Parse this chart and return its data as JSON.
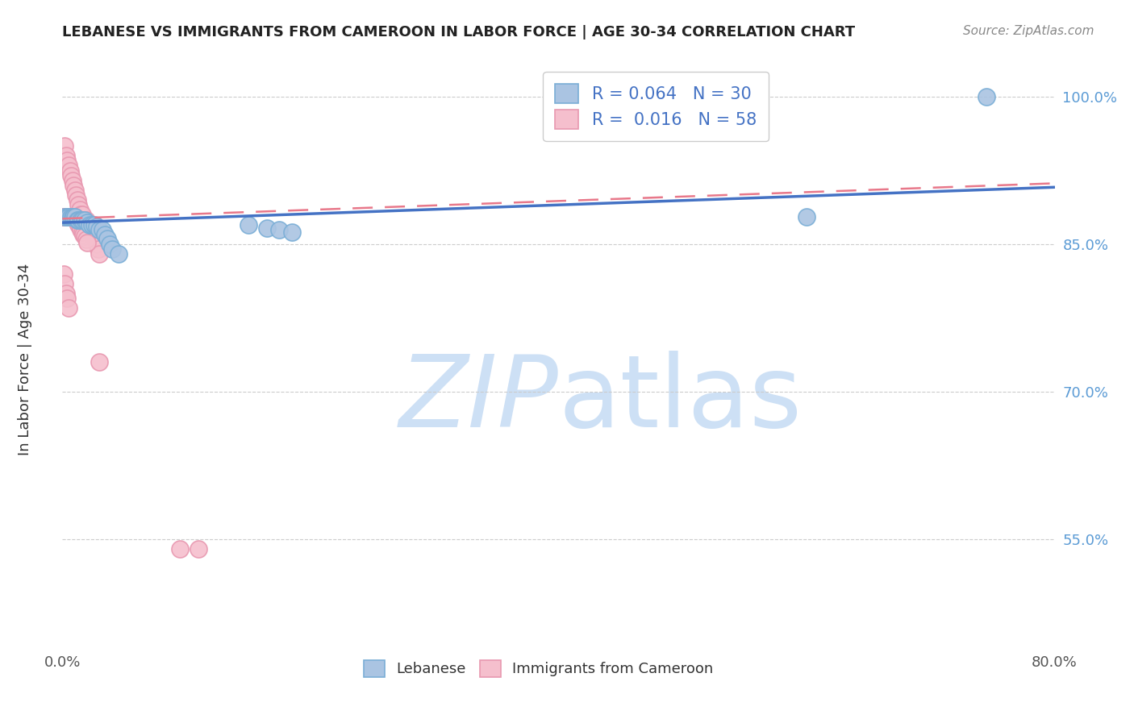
{
  "title": "LEBANESE VS IMMIGRANTS FROM CAMEROON IN LABOR FORCE | AGE 30-34 CORRELATION CHART",
  "source": "Source: ZipAtlas.com",
  "ylabel": "In Labor Force | Age 30-34",
  "xlim": [
    0.0,
    0.8
  ],
  "ylim": [
    0.44,
    1.04
  ],
  "xticks": [
    0.0,
    0.1,
    0.2,
    0.3,
    0.4,
    0.5,
    0.6,
    0.7,
    0.8
  ],
  "xticklabels": [
    "0.0%",
    "",
    "",
    "",
    "",
    "",
    "",
    "",
    "80.0%"
  ],
  "ytick_positions": [
    0.55,
    0.7,
    0.85,
    1.0
  ],
  "yticklabels": [
    "55.0%",
    "70.0%",
    "85.0%",
    "100.0%"
  ],
  "blue_R": 0.064,
  "blue_N": 30,
  "pink_R": 0.016,
  "pink_N": 58,
  "blue_color": "#aac4e2",
  "pink_color": "#f5bfcd",
  "blue_edge": "#7aaed6",
  "pink_edge": "#e898b0",
  "blue_line_color": "#4472c4",
  "pink_line_color": "#e8788a",
  "watermark_color": "#cde0f5",
  "grid_color": "#cccccc",
  "blue_scatter_x": [
    0.002,
    0.004,
    0.005,
    0.007,
    0.008,
    0.009,
    0.01,
    0.012,
    0.013,
    0.015,
    0.016,
    0.018,
    0.02,
    0.022,
    0.024,
    0.026,
    0.028,
    0.03,
    0.032,
    0.034,
    0.036,
    0.038,
    0.04,
    0.045,
    0.15,
    0.165,
    0.175,
    0.185,
    0.6,
    0.745
  ],
  "blue_scatter_y": [
    0.878,
    0.878,
    0.878,
    0.878,
    0.878,
    0.878,
    0.878,
    0.875,
    0.875,
    0.875,
    0.875,
    0.875,
    0.872,
    0.87,
    0.87,
    0.87,
    0.868,
    0.865,
    0.865,
    0.86,
    0.856,
    0.85,
    0.845,
    0.84,
    0.87,
    0.866,
    0.865,
    0.862,
    0.878,
    1.0
  ],
  "pink_scatter_x": [
    0.001,
    0.002,
    0.003,
    0.004,
    0.005,
    0.006,
    0.007,
    0.008,
    0.009,
    0.01,
    0.011,
    0.012,
    0.013,
    0.014,
    0.015,
    0.016,
    0.017,
    0.018,
    0.019,
    0.02,
    0.021,
    0.022,
    0.023,
    0.024,
    0.025,
    0.026,
    0.027,
    0.028,
    0.029,
    0.03,
    0.001,
    0.002,
    0.003,
    0.004,
    0.005,
    0.006,
    0.007,
    0.008,
    0.009,
    0.01,
    0.011,
    0.012,
    0.013,
    0.014,
    0.015,
    0.016,
    0.017,
    0.018,
    0.019,
    0.02,
    0.001,
    0.002,
    0.003,
    0.004,
    0.005,
    0.03,
    0.095,
    0.11
  ],
  "pink_scatter_y": [
    0.878,
    0.95,
    0.94,
    0.935,
    0.93,
    0.925,
    0.92,
    0.915,
    0.91,
    0.905,
    0.9,
    0.895,
    0.89,
    0.885,
    0.88,
    0.88,
    0.875,
    0.875,
    0.875,
    0.87,
    0.87,
    0.865,
    0.862,
    0.86,
    0.858,
    0.856,
    0.855,
    0.85,
    0.845,
    0.84,
    0.878,
    0.878,
    0.878,
    0.878,
    0.878,
    0.878,
    0.878,
    0.878,
    0.878,
    0.878,
    0.875,
    0.872,
    0.87,
    0.868,
    0.865,
    0.862,
    0.86,
    0.858,
    0.855,
    0.852,
    0.82,
    0.81,
    0.8,
    0.795,
    0.785,
    0.73,
    0.54,
    0.54
  ],
  "blue_line_x0": 0.0,
  "blue_line_x1": 0.8,
  "blue_line_y0": 0.872,
  "blue_line_y1": 0.908,
  "pink_line_x0": 0.0,
  "pink_line_x1": 0.8,
  "pink_line_y0": 0.876,
  "pink_line_y1": 0.912
}
